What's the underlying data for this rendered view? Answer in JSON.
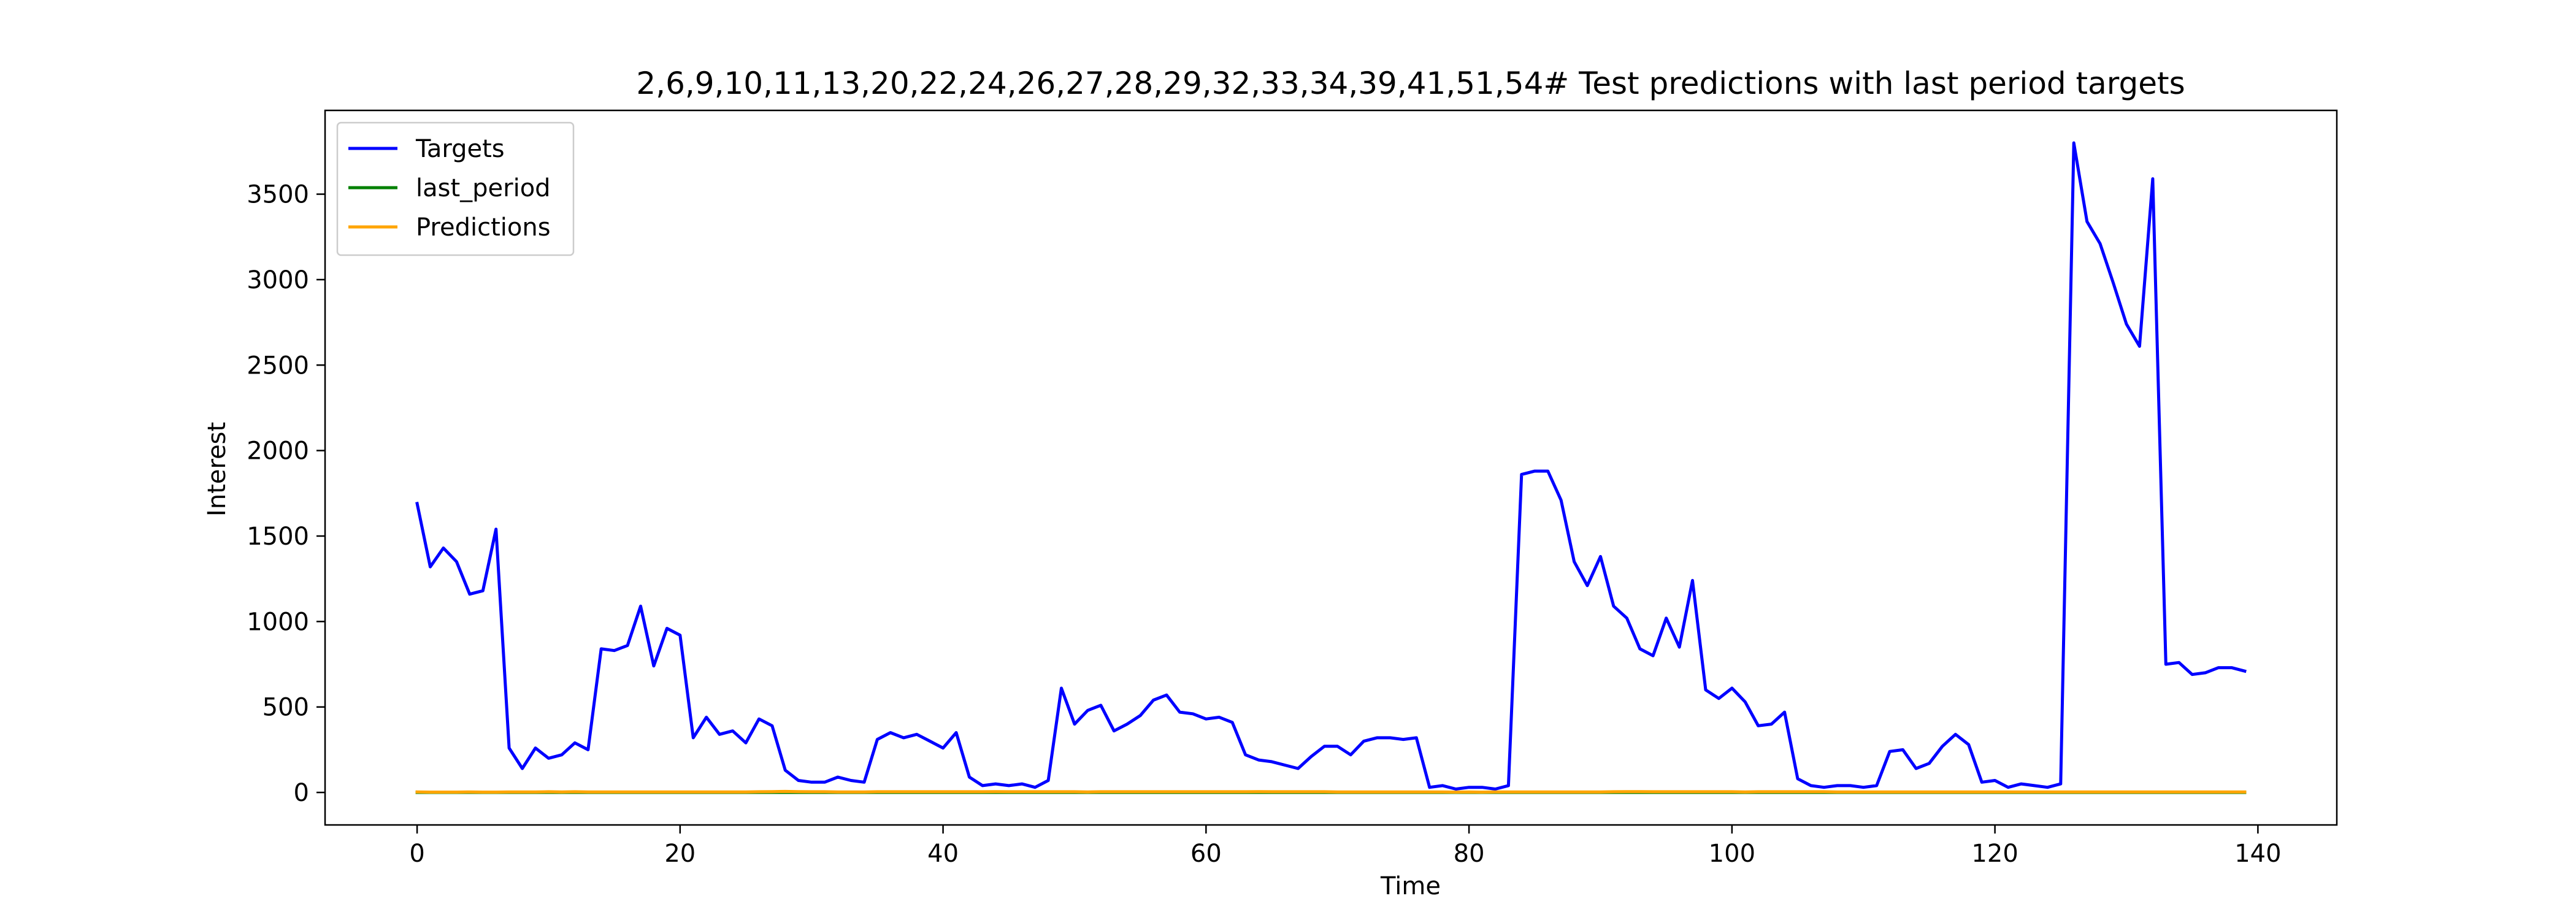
{
  "chart_data": {
    "type": "line",
    "title": "2,6,9,10,11,13,20,22,24,26,27,28,29,32,33,34,39,41,51,54# Test predictions with last period targets",
    "xlabel": "Time",
    "ylabel": "Interest",
    "xlim": [
      -7,
      146
    ],
    "ylim": [
      -190,
      3990
    ],
    "xticks": [
      0,
      20,
      40,
      60,
      80,
      100,
      120,
      140
    ],
    "yticks": [
      0,
      500,
      1000,
      1500,
      2000,
      2500,
      3000,
      3500
    ],
    "grid": false,
    "legend": "top-left",
    "x": [
      0,
      1,
      2,
      3,
      4,
      5,
      6,
      7,
      8,
      9,
      10,
      11,
      12,
      13,
      14,
      15,
      16,
      17,
      18,
      19,
      20,
      21,
      22,
      23,
      24,
      25,
      26,
      27,
      28,
      29,
      30,
      31,
      32,
      33,
      34,
      35,
      36,
      37,
      38,
      39,
      40,
      41,
      42,
      43,
      44,
      45,
      46,
      47,
      48,
      49,
      50,
      51,
      52,
      53,
      54,
      55,
      56,
      57,
      58,
      59,
      60,
      61,
      62,
      63,
      64,
      65,
      66,
      67,
      68,
      69,
      70,
      71,
      72,
      73,
      74,
      75,
      76,
      77,
      78,
      79,
      80,
      81,
      82,
      83,
      84,
      85,
      86,
      87,
      88,
      89,
      90,
      91,
      92,
      93,
      94,
      95,
      96,
      97,
      98,
      99,
      100,
      101,
      102,
      103,
      104,
      105,
      106,
      107,
      108,
      109,
      110,
      111,
      112,
      113,
      114,
      115,
      116,
      117,
      118,
      119,
      120,
      121,
      122,
      123,
      124,
      125,
      126,
      127,
      128,
      129,
      130,
      131,
      132,
      133,
      134,
      135,
      136,
      137,
      138,
      139
    ],
    "series": [
      {
        "name": "Targets",
        "color": "#0000ff",
        "values": [
          1690,
          1320,
          1430,
          1350,
          1160,
          1180,
          1540,
          260,
          140,
          260,
          200,
          220,
          290,
          250,
          840,
          830,
          860,
          1090,
          740,
          960,
          920,
          320,
          440,
          340,
          360,
          290,
          430,
          390,
          130,
          70,
          60,
          60,
          90,
          70,
          60,
          310,
          350,
          320,
          340,
          300,
          260,
          350,
          90,
          40,
          50,
          40,
          50,
          30,
          70,
          610,
          400,
          480,
          510,
          360,
          400,
          450,
          540,
          570,
          470,
          460,
          430,
          440,
          410,
          220,
          190,
          180,
          160,
          140,
          210,
          270,
          270,
          220,
          300,
          320,
          320,
          310,
          320,
          30,
          40,
          20,
          30,
          30,
          20,
          40,
          1860,
          1880,
          1880,
          1710,
          1350,
          1210,
          1380,
          1090,
          1020,
          840,
          800,
          1020,
          850,
          1240,
          600,
          550,
          610,
          530,
          390,
          400,
          470,
          80,
          40,
          30,
          40,
          40,
          30,
          40,
          240,
          250,
          140,
          170,
          270,
          340,
          280,
          60,
          70,
          30,
          50,
          40,
          30,
          50,
          3800,
          3340,
          3210,
          2980,
          2740,
          2610,
          3590,
          750,
          760,
          690,
          700,
          730,
          730,
          710
        ]
      },
      {
        "name": "last_period",
        "color": "#008000",
        "values": [
          0,
          0,
          0,
          0,
          0,
          0,
          0,
          0,
          0,
          0,
          0,
          0,
          0,
          0,
          0,
          0,
          0,
          0,
          0,
          0,
          0,
          0,
          0,
          0,
          0,
          0,
          0,
          0,
          0,
          0,
          0,
          0,
          0,
          0,
          0,
          0,
          0,
          0,
          0,
          0,
          0,
          0,
          0,
          0,
          0,
          0,
          0,
          0,
          0,
          0,
          0,
          0,
          0,
          0,
          0,
          0,
          0,
          0,
          0,
          0,
          0,
          0,
          0,
          0,
          0,
          0,
          0,
          0,
          0,
          0,
          0,
          0,
          0,
          0,
          0,
          0,
          0,
          0,
          0,
          0,
          0,
          0,
          0,
          0,
          0,
          0,
          0,
          0,
          0,
          0,
          0,
          0,
          0,
          0,
          0,
          0,
          0,
          0,
          0,
          0,
          0,
          0,
          0,
          0,
          0,
          0,
          0,
          0,
          0,
          0,
          0,
          0,
          0,
          0,
          0,
          0,
          0,
          0,
          0,
          0,
          0,
          0,
          0,
          0,
          0,
          0,
          0,
          0,
          0,
          0,
          0,
          0,
          0,
          0,
          0,
          0,
          0,
          0,
          0,
          0
        ]
      },
      {
        "name": "Predictions",
        "color": "#ffa500",
        "values": [
          3,
          2,
          2,
          2,
          3,
          2,
          2,
          3,
          3,
          3,
          4,
          3,
          4,
          3,
          3,
          3,
          3,
          3,
          3,
          3,
          3,
          3,
          3,
          3,
          3,
          3,
          4,
          5,
          6,
          5,
          4,
          4,
          3,
          3,
          3,
          4,
          4,
          4,
          4,
          4,
          4,
          4,
          4,
          4,
          5,
          4,
          4,
          4,
          4,
          4,
          4,
          3,
          4,
          4,
          4,
          4,
          4,
          4,
          4,
          4,
          4,
          4,
          4,
          4,
          5,
          4,
          4,
          4,
          4,
          4,
          3,
          3,
          3,
          3,
          3,
          3,
          3,
          3,
          3,
          2,
          3,
          2,
          3,
          3,
          3,
          3,
          3,
          3,
          3,
          3,
          3,
          4,
          5,
          5,
          4,
          4,
          4,
          4,
          4,
          4,
          4,
          3,
          4,
          4,
          4,
          4,
          4,
          4,
          3,
          3,
          3,
          3,
          3,
          3,
          3,
          3,
          3,
          3,
          3,
          3,
          3,
          3,
          3,
          3,
          3,
          3,
          3,
          3,
          3,
          3,
          3,
          3,
          3,
          3,
          3,
          3,
          3,
          3,
          3,
          3
        ]
      }
    ]
  }
}
